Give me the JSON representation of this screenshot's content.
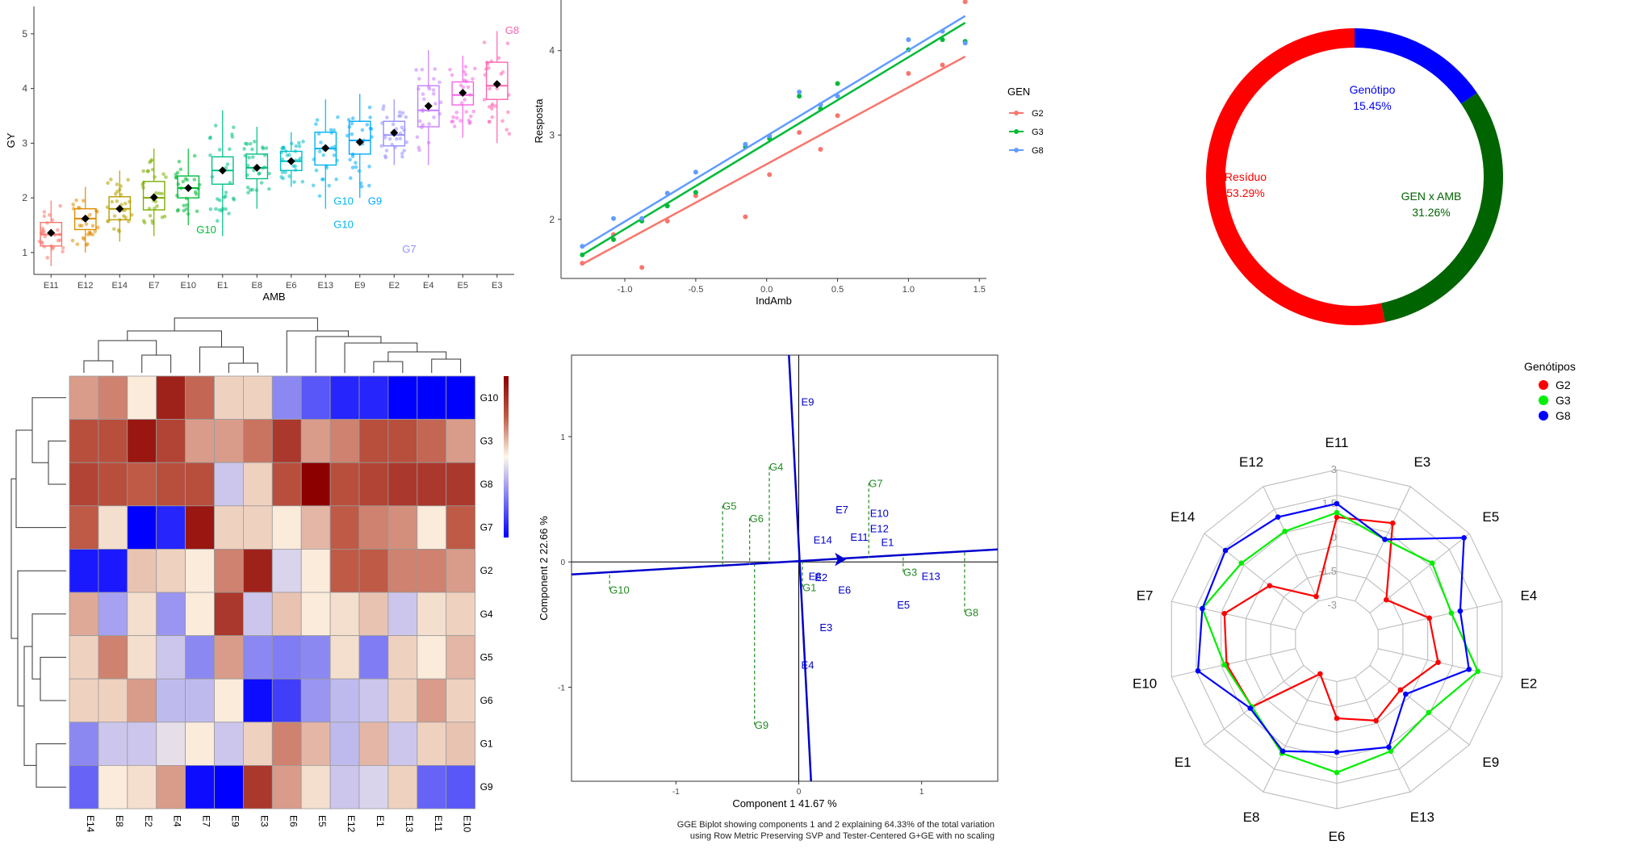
{
  "chart_data": [
    {
      "type": "box",
      "xlabel": "AMB",
      "ylabel": "GY",
      "yticks": [
        "1",
        "2",
        "3",
        "4",
        "5"
      ],
      "ylim": [
        0.6,
        5.5
      ],
      "categories": [
        "E11",
        "E12",
        "E14",
        "E7",
        "E10",
        "E1",
        "E8",
        "E6",
        "E13",
        "E9",
        "E2",
        "E4",
        "E5",
        "E3"
      ],
      "colors": [
        "#F8766D",
        "#DE8C00",
        "#B79F00",
        "#7CAE00",
        "#00BA38",
        "#00C08B",
        "#00BF7D",
        "#00BFC4",
        "#00B4F0",
        "#00A9FF",
        "#9590FF",
        "#C77CFF",
        "#F564E3",
        "#FF64B0"
      ],
      "box": [
        {
          "q1": 1.12,
          "median": 1.33,
          "q3": 1.55,
          "low": 0.75,
          "high": 1.95,
          "mean": 1.36
        },
        {
          "q1": 1.42,
          "median": 1.62,
          "q3": 1.8,
          "low": 1.0,
          "high": 2.2,
          "mean": 1.62
        },
        {
          "q1": 1.6,
          "median": 1.8,
          "q3": 2.02,
          "low": 1.2,
          "high": 2.5,
          "mean": 1.8
        },
        {
          "q1": 1.78,
          "median": 2.0,
          "q3": 2.3,
          "low": 1.3,
          "high": 2.9,
          "mean": 2.01
        },
        {
          "q1": 2.0,
          "median": 2.18,
          "q3": 2.4,
          "low": 1.5,
          "high": 2.9,
          "mean": 2.18
        },
        {
          "q1": 2.25,
          "median": 2.5,
          "q3": 2.75,
          "low": 1.3,
          "high": 3.6,
          "mean": 2.5
        },
        {
          "q1": 2.35,
          "median": 2.55,
          "q3": 2.8,
          "low": 1.8,
          "high": 3.3,
          "mean": 2.55
        },
        {
          "q1": 2.5,
          "median": 2.67,
          "q3": 2.85,
          "low": 2.2,
          "high": 3.2,
          "mean": 2.67
        },
        {
          "q1": 2.6,
          "median": 2.9,
          "q3": 3.2,
          "low": 1.8,
          "high": 3.8,
          "mean": 2.91
        },
        {
          "q1": 2.8,
          "median": 3.05,
          "q3": 3.4,
          "low": 2.0,
          "high": 3.9,
          "mean": 3.02
        },
        {
          "q1": 2.95,
          "median": 3.15,
          "q3": 3.4,
          "low": 2.6,
          "high": 3.8,
          "mean": 3.19
        },
        {
          "q1": 3.3,
          "median": 3.6,
          "q3": 4.05,
          "low": 2.6,
          "high": 4.7,
          "mean": 3.68
        },
        {
          "q1": 3.7,
          "median": 3.88,
          "q3": 4.12,
          "low": 3.1,
          "high": 4.6,
          "mean": 3.92
        },
        {
          "q1": 3.8,
          "median": 4.05,
          "q3": 4.48,
          "low": 3.0,
          "high": 5.05,
          "mean": 4.08
        }
      ],
      "annotations": [
        {
          "text": "G10",
          "cat": 4,
          "y": 1.35
        },
        {
          "text": "G10",
          "cat": 8,
          "y": 1.88
        },
        {
          "text": "G9",
          "cat": 9,
          "y": 1.88
        },
        {
          "text": "G10",
          "cat": 8,
          "y": 1.45
        },
        {
          "text": "G7",
          "cat": 10,
          "y": 1.0
        },
        {
          "text": "G8",
          "cat": 13,
          "y": 5.0
        }
      ]
    },
    {
      "type": "scatter",
      "xlabel": "IndAmb",
      "ylabel": "Resposta",
      "xticks": [
        "-1.0",
        "-0.5",
        "0.0",
        "0.5",
        "1.0",
        "1.5"
      ],
      "yticks": [
        "2",
        "3",
        "4"
      ],
      "xlim": [
        -1.45,
        1.55
      ],
      "ylim": [
        1.3,
        4.6
      ],
      "legend_title": "GEN",
      "series": [
        {
          "name": "G2",
          "color": "#F8766D",
          "line": [
            [
              -1.3,
              1.47
            ],
            [
              1.4,
              3.93
            ]
          ],
          "points": [
            [
              -1.3,
              1.48
            ],
            [
              -1.08,
              1.82
            ],
            [
              -0.88,
              1.43
            ],
            [
              -0.7,
              1.98
            ],
            [
              -0.5,
              2.28
            ],
            [
              -0.15,
              2.03
            ],
            [
              0.02,
              2.53
            ],
            [
              0.23,
              3.03
            ],
            [
              0.38,
              2.83
            ],
            [
              0.5,
              3.23
            ],
            [
              1.0,
              3.73
            ],
            [
              1.24,
              3.83
            ],
            [
              1.4,
              4.58
            ]
          ]
        },
        {
          "name": "G3",
          "color": "#00BA38",
          "line": [
            [
              -1.3,
              1.58
            ],
            [
              1.4,
              4.33
            ]
          ],
          "points": [
            [
              -1.3,
              1.58
            ],
            [
              -1.08,
              1.76
            ],
            [
              -0.88,
              1.98
            ],
            [
              -0.7,
              2.16
            ],
            [
              -0.5,
              2.32
            ],
            [
              -0.15,
              2.86
            ],
            [
              0.02,
              2.96
            ],
            [
              0.23,
              3.46
            ],
            [
              0.38,
              3.31
            ],
            [
              0.5,
              3.61
            ],
            [
              1.0,
              4.01
            ],
            [
              1.24,
              4.13
            ],
            [
              1.4,
              4.11
            ]
          ]
        },
        {
          "name": "G8",
          "color": "#619CFF",
          "line": [
            [
              -1.3,
              1.67
            ],
            [
              1.4,
              4.41
            ]
          ],
          "points": [
            [
              -1.3,
              1.68
            ],
            [
              -1.08,
              2.01
            ],
            [
              -0.88,
              2.01
            ],
            [
              -0.7,
              2.31
            ],
            [
              -0.5,
              2.56
            ],
            [
              -0.15,
              2.89
            ],
            [
              0.02,
              2.99
            ],
            [
              0.23,
              3.51
            ],
            [
              0.38,
              3.36
            ],
            [
              0.5,
              3.46
            ],
            [
              1.0,
              4.13
            ],
            [
              1.24,
              4.23
            ],
            [
              1.4,
              4.09
            ]
          ]
        }
      ]
    },
    {
      "type": "pie",
      "slices": [
        {
          "label": "Genótipo",
          "value": "15.45%",
          "pct": 15.45,
          "color": "#0000FF"
        },
        {
          "label": "GEN x AMB",
          "value": "31.26%",
          "pct": 31.26,
          "color": "#006400"
        },
        {
          "label": "Resíduo",
          "value": "53.29%",
          "pct": 53.29,
          "color": "#FF0000"
        }
      ]
    },
    {
      "type": "heatmap",
      "rows": [
        "G10",
        "G3",
        "G8",
        "G7",
        "G2",
        "G4",
        "G5",
        "G6",
        "G1",
        "G9"
      ],
      "cols": [
        "E14",
        "E8",
        "E2",
        "E4",
        "E7",
        "E9",
        "E3",
        "E6",
        "E5",
        "E12",
        "E1",
        "E13",
        "E11",
        "E10"
      ],
      "values": [
        [
          0.35,
          0.45,
          0.05,
          0.85,
          0.55,
          0.15,
          0.15,
          -0.45,
          -0.65,
          -0.85,
          -0.85,
          -1.0,
          -1.0,
          -1.0
        ],
        [
          0.65,
          0.65,
          0.9,
          0.7,
          0.35,
          0.35,
          0.5,
          0.75,
          0.35,
          0.45,
          0.65,
          0.65,
          0.55,
          0.35
        ],
        [
          0.7,
          0.65,
          0.6,
          0.65,
          0.65,
          -0.2,
          0.15,
          0.65,
          1.0,
          0.65,
          0.7,
          0.75,
          0.75,
          0.75
        ],
        [
          0.6,
          0.1,
          -1.0,
          -0.85,
          0.9,
          0.15,
          0.15,
          0.05,
          0.25,
          0.6,
          0.45,
          0.4,
          0.05,
          0.6
        ],
        [
          -0.9,
          -0.9,
          0.2,
          0.15,
          0.05,
          0.45,
          0.85,
          -0.15,
          0.05,
          0.6,
          0.6,
          0.45,
          0.45,
          0.35
        ],
        [
          0.3,
          -0.35,
          0.1,
          -0.4,
          0.05,
          0.75,
          -0.2,
          0.2,
          0.05,
          0.1,
          0.2,
          -0.2,
          0.1,
          0.15
        ],
        [
          0.15,
          0.45,
          0.1,
          -0.2,
          -0.45,
          0.35,
          -0.45,
          -0.5,
          -0.45,
          0.1,
          -0.5,
          0.15,
          0.05,
          0.25
        ],
        [
          0.15,
          0.15,
          0.35,
          -0.25,
          -0.25,
          0.05,
          -0.95,
          -0.75,
          -0.4,
          -0.25,
          -0.2,
          0.15,
          0.35,
          0.15
        ],
        [
          -0.45,
          -0.2,
          -0.2,
          -0.1,
          0.05,
          -0.2,
          0.15,
          0.45,
          0.25,
          -0.25,
          0.25,
          -0.2,
          0.15,
          0.2
        ],
        [
          -0.6,
          0.05,
          0.1,
          0.35,
          -0.95,
          -1.0,
          0.75,
          0.35,
          0.1,
          -0.2,
          -0.15,
          0.15,
          -0.6,
          -0.65
        ]
      ]
    },
    {
      "type": "scatter",
      "xlabel": "Component 1 41.67 %",
      "ylabel": "Component 2 22.66 %",
      "xticks": [
        "-1",
        "0",
        "1"
      ],
      "yticks": [
        "-1",
        "0",
        "1"
      ],
      "xlim": [
        -1.85,
        1.62
      ],
      "ylim": [
        -1.75,
        1.65
      ],
      "caption": [
        "GGE Biplot showing components 1 and 2 explaining 64.33% of the total variation",
        "using Row Metric Preserving SVP and Tester-Centered G+GE with no scaling"
      ],
      "genotypes": [
        {
          "label": "G10",
          "x": -1.54,
          "y": -0.22
        },
        {
          "label": "G4",
          "x": -0.24,
          "y": 0.76
        },
        {
          "label": "G5",
          "x": -0.62,
          "y": 0.45
        },
        {
          "label": "G6",
          "x": -0.4,
          "y": 0.35
        },
        {
          "label": "G9",
          "x": -0.36,
          "y": -1.3
        },
        {
          "label": "G1",
          "x": 0.03,
          "y": -0.2
        },
        {
          "label": "G7",
          "x": 0.57,
          "y": 0.63
        },
        {
          "label": "G3",
          "x": 0.85,
          "y": -0.08
        },
        {
          "label": "G8",
          "x": 1.35,
          "y": -0.4
        }
      ],
      "environments": [
        {
          "label": "E9",
          "x": 0.02,
          "y": 1.28
        },
        {
          "label": "E7",
          "x": 0.3,
          "y": 0.42
        },
        {
          "label": "E14",
          "x": 0.12,
          "y": 0.18
        },
        {
          "label": "E10",
          "x": 0.58,
          "y": 0.39
        },
        {
          "label": "E12",
          "x": 0.58,
          "y": 0.27
        },
        {
          "label": "E11",
          "x": 0.42,
          "y": 0.2
        },
        {
          "label": "E1",
          "x": 0.67,
          "y": 0.16
        },
        {
          "label": "E6",
          "x": 0.32,
          "y": -0.22
        },
        {
          "label": "E2",
          "x": 0.13,
          "y": -0.12
        },
        {
          "label": "E8",
          "x": 0.08,
          "y": -0.11
        },
        {
          "label": "E13",
          "x": 1.0,
          "y": -0.11
        },
        {
          "label": "E5",
          "x": 0.8,
          "y": -0.34
        },
        {
          "label": "E3",
          "x": 0.17,
          "y": -0.52
        },
        {
          "label": "E4",
          "x": 0.02,
          "y": -0.82
        }
      ],
      "axes_lines": [
        {
          "from": [
            -1.85,
            -0.1
          ],
          "to": [
            1.62,
            0.1
          ]
        },
        {
          "from": [
            -0.08,
            1.65
          ],
          "to": [
            0.1,
            -1.75
          ]
        }
      ]
    },
    {
      "type": "radar",
      "axes": [
        "E11",
        "E3",
        "E5",
        "E4",
        "E2",
        "E9",
        "E13",
        "E6",
        "E8",
        "E1",
        "E10",
        "E7",
        "E14",
        "E12"
      ],
      "ring_labels": [
        "3",
        "1.5",
        "0",
        "-1.5",
        "-3"
      ],
      "range": [
        -4.5,
        3
      ],
      "legend_title": "Genótipos",
      "series": [
        {
          "name": "G2",
          "color": "#FF0000",
          "values": [
            0.9,
            1.2,
            -1.7,
            -0.3,
            0.1,
            -0.9,
            -0.5,
            -1.0,
            -2.8,
            0.3,
            0.5,
            0.6,
            -0.7,
            -2.4
          ]
        },
        {
          "name": "G3",
          "color": "#00EE00",
          "values": [
            1.1,
            0.4,
            0.9,
            0.7,
            1.9,
            0.7,
            1.0,
            1.4,
            1.1,
            0.3,
            0.6,
            1.6,
            0.9,
            0.8
          ]
        },
        {
          "name": "G8",
          "color": "#0000FF",
          "values": [
            1.5,
            0.4,
            2.7,
            1.1,
            1.5,
            -0.6,
            0.8,
            0.5,
            1.0,
            0.4,
            1.8,
            1.6,
            1.8,
            1.5
          ]
        }
      ]
    }
  ]
}
